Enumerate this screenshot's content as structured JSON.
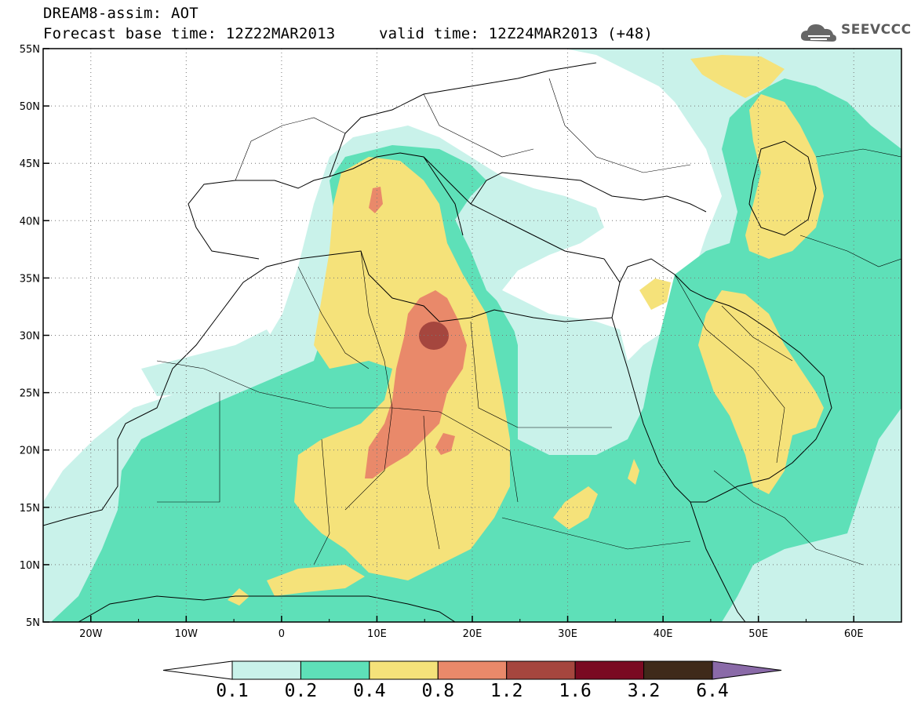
{
  "header": {
    "title": "DREAM8-assim: AOT",
    "base_time": "Forecast base time: 12Z22MAR2013",
    "valid_time": "valid time: 12Z24MAR2013 (+48)",
    "logo_text": "SEEVCCC"
  },
  "map": {
    "projection": "lat-lon",
    "lon_range": [
      -25,
      65
    ],
    "lat_range": [
      5,
      55
    ],
    "lon_ticks": [
      {
        "value": -20,
        "label": "20W"
      },
      {
        "value": -10,
        "label": "10W"
      },
      {
        "value": 0,
        "label": "0"
      },
      {
        "value": 10,
        "label": "10E"
      },
      {
        "value": 20,
        "label": "20E"
      },
      {
        "value": 30,
        "label": "30E"
      },
      {
        "value": 40,
        "label": "40E"
      },
      {
        "value": 50,
        "label": "50E"
      },
      {
        "value": 60,
        "label": "60E"
      }
    ],
    "lat_ticks": [
      {
        "value": 55,
        "label": "55N"
      },
      {
        "value": 50,
        "label": "50N"
      },
      {
        "value": 45,
        "label": "45N"
      },
      {
        "value": 40,
        "label": "40N"
      },
      {
        "value": 35,
        "label": "35N"
      },
      {
        "value": 30,
        "label": "30N"
      },
      {
        "value": 25,
        "label": "25N"
      },
      {
        "value": 20,
        "label": "20N"
      },
      {
        "value": 15,
        "label": "15N"
      },
      {
        "value": 10,
        "label": "10N"
      },
      {
        "value": 5,
        "label": "5N"
      }
    ],
    "grid": "dotted"
  },
  "colorbar": {
    "levels": [
      "0.1",
      "0.2",
      "0.4",
      "0.8",
      "1.2",
      "1.6",
      "3.2",
      "6.4"
    ],
    "colors": [
      "#ffffff",
      "#c9f2ea",
      "#5ee0b8",
      "#f5e27a",
      "#e9896a",
      "#a5463e",
      "#7a0a22",
      "#3f2a1a",
      "#8a6aa8"
    ]
  }
}
